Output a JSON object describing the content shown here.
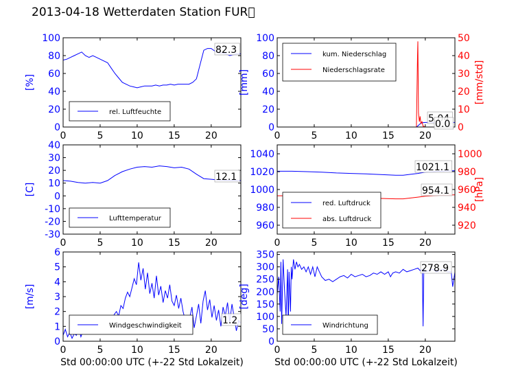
{
  "title": "2013-04-18 Wetterdaten Station FUR\u0000",
  "colors": {
    "blue": "#0000ff",
    "red": "#ff0000",
    "black": "#000000"
  },
  "chart_data": [
    {
      "id": "humidity",
      "type": "line",
      "xlabel": "",
      "ylabel": "[%]",
      "xlim": [
        0,
        24
      ],
      "ylim": [
        0,
        100
      ],
      "xticks": [
        0,
        5,
        10,
        15,
        20
      ],
      "yticks": [
        0,
        20,
        40,
        60,
        80,
        100
      ],
      "annotation": "82.3",
      "legend": [
        {
          "name": "rel. Luftfeuchte",
          "color": "#0000ff"
        }
      ],
      "legend_position": "lower-left",
      "series": [
        {
          "name": "rel. Luftfeuchte",
          "color": "#0000ff",
          "x": [
            0,
            0.5,
            1,
            1.5,
            2,
            2.5,
            3,
            3.5,
            4,
            4.5,
            5,
            5.5,
            6,
            6.5,
            7,
            7.5,
            8,
            8.5,
            9,
            9.5,
            10,
            10.5,
            11,
            11.5,
            12,
            12.5,
            13,
            13.5,
            14,
            14.5,
            15,
            15.5,
            16,
            16.5,
            17,
            17.5,
            18,
            18.5,
            19,
            19.5,
            20,
            20.5,
            21,
            21.5,
            22,
            22.5,
            23,
            23.5,
            24
          ],
          "y": [
            75,
            76,
            78,
            80,
            82,
            84,
            80,
            78,
            80,
            78,
            76,
            74,
            72,
            66,
            60,
            55,
            50,
            48,
            46,
            45,
            44,
            45,
            46,
            46,
            46,
            47,
            46,
            47,
            47,
            48,
            47,
            48,
            48,
            48,
            48,
            50,
            54,
            70,
            86,
            88,
            88,
            85,
            83,
            83,
            82,
            80,
            81,
            82,
            82
          ]
        }
      ]
    },
    {
      "id": "precip",
      "type": "line",
      "xlabel": "",
      "ylabel": "[mm]",
      "ylabel_right": "[mm/std]",
      "xlim": [
        0,
        24
      ],
      "ylim": [
        0,
        100
      ],
      "ylim_right": [
        0,
        50
      ],
      "xticks": [
        0,
        5,
        10,
        15,
        20
      ],
      "yticks": [
        0,
        20,
        40,
        60,
        80,
        100
      ],
      "yticks_right": [
        0,
        10,
        20,
        30,
        40,
        50
      ],
      "annotations": [
        "5.04",
        "0.0"
      ],
      "legend": [
        {
          "name": "kum. Niederschlag",
          "color": "#0000ff"
        },
        {
          "name": "Niederschlagsrate",
          "color": "#ff0000"
        }
      ],
      "legend_position": "upper-left",
      "series": [
        {
          "name": "kum. Niederschlag",
          "color": "#0000ff",
          "axis": "left",
          "x": [
            0,
            18.8,
            19,
            19.2,
            19.4,
            19.6,
            20,
            24
          ],
          "y": [
            0,
            0,
            1.2,
            2.8,
            4.2,
            4.8,
            5.04,
            5.04
          ]
        },
        {
          "name": "Niederschlagsrate",
          "color": "#ff0000",
          "axis": "right",
          "x": [
            0,
            18.8,
            18.95,
            19.0,
            19.08,
            19.2,
            19.3,
            19.4,
            19.55,
            19.7,
            20,
            24
          ],
          "y": [
            0,
            0,
            40,
            48,
            8,
            3,
            6,
            2,
            3,
            0.5,
            0,
            0
          ]
        }
      ]
    },
    {
      "id": "temperature",
      "type": "line",
      "xlabel": "",
      "ylabel": "[C]",
      "xlim": [
        0,
        24
      ],
      "ylim": [
        -30,
        40
      ],
      "xticks": [
        0,
        5,
        10,
        15,
        20
      ],
      "yticks": [
        -30,
        -20,
        -10,
        0,
        10,
        20,
        30,
        40
      ],
      "annotation": "12.1",
      "legend": [
        {
          "name": "Lufttemperatur",
          "color": "#0000ff"
        }
      ],
      "legend_position": "lower-left",
      "series": [
        {
          "name": "Lufttemperatur",
          "color": "#0000ff",
          "x": [
            0,
            1,
            2,
            3,
            4,
            5,
            6,
            7,
            8,
            9,
            10,
            11,
            12,
            13,
            14,
            15,
            16,
            17,
            18,
            19,
            20,
            21,
            22,
            23,
            24
          ],
          "y": [
            12,
            11.5,
            10.5,
            10,
            10.5,
            10,
            12,
            16,
            19,
            21,
            22.5,
            23,
            22.5,
            23.5,
            23,
            22,
            22.5,
            21,
            17,
            13.5,
            13,
            12.5,
            12.3,
            12.1,
            12
          ]
        }
      ]
    },
    {
      "id": "pressure",
      "type": "line",
      "xlabel": "",
      "ylabel": "",
      "ylabel_right": "[hPa]",
      "xlim": [
        0,
        24
      ],
      "ylim": [
        950,
        1050
      ],
      "ylim_right": [
        910,
        1010
      ],
      "xticks": [
        0,
        5,
        10,
        15,
        20
      ],
      "yticks": [
        960,
        980,
        1000,
        1020,
        1040
      ],
      "yticks_right": [
        920,
        940,
        960,
        980,
        1000
      ],
      "annotations": [
        "1021.1",
        "954.1"
      ],
      "legend": [
        {
          "name": "red. Luftdruck",
          "color": "#0000ff"
        },
        {
          "name": "abs. Luftdruck",
          "color": "#ff0000"
        }
      ],
      "legend_position": "lower-left",
      "series": [
        {
          "name": "red. Luftdruck",
          "color": "#0000ff",
          "axis": "left",
          "x": [
            0,
            2,
            4,
            6,
            8,
            10,
            12,
            14,
            16,
            17,
            18,
            19,
            20,
            22,
            24
          ],
          "y": [
            1020.5,
            1020.5,
            1020,
            1019.5,
            1018.5,
            1018,
            1017.5,
            1016.8,
            1016,
            1016,
            1017,
            1018,
            1019.5,
            1020.5,
            1021.1
          ]
        },
        {
          "name": "abs. Luftdruck",
          "color": "#ff0000",
          "axis": "right",
          "x": [
            0,
            2,
            4,
            6,
            8,
            10,
            12,
            14,
            16,
            17,
            18,
            19,
            20,
            22,
            24
          ],
          "y": [
            953,
            953,
            952.5,
            952,
            951.5,
            951,
            950.5,
            950,
            949.5,
            949.5,
            950.5,
            951.5,
            952.5,
            953.5,
            954.1
          ]
        }
      ]
    },
    {
      "id": "windspeed",
      "type": "line",
      "xlabel": "Std 00:00:00 UTC (+-22 Std Lokalzeit)",
      "ylabel": "[m/s]",
      "xlim": [
        0,
        24
      ],
      "ylim": [
        0,
        6
      ],
      "xticks": [
        0,
        5,
        10,
        15,
        20
      ],
      "yticks": [
        0,
        1,
        2,
        3,
        4,
        5,
        6
      ],
      "annotation": "1.2",
      "legend": [
        {
          "name": "Windgeschwindigkeit",
          "color": "#0000ff"
        }
      ],
      "legend_position": "lower-left",
      "series": [
        {
          "name": "Windgeschwindigkeit",
          "color": "#0000ff",
          "x": [
            0,
            0.3,
            0.6,
            0.9,
            1.2,
            1.5,
            1.8,
            2.1,
            2.4,
            2.7,
            3.0,
            3.3,
            3.6,
            3.9,
            4.2,
            4.5,
            4.8,
            5.1,
            5.4,
            5.7,
            6.0,
            6.3,
            6.6,
            6.9,
            7.2,
            7.5,
            7.8,
            8.1,
            8.4,
            8.7,
            9.0,
            9.3,
            9.6,
            9.9,
            10.2,
            10.5,
            10.8,
            11.1,
            11.4,
            11.7,
            12.0,
            12.3,
            12.6,
            12.9,
            13.2,
            13.5,
            13.8,
            14.1,
            14.4,
            14.7,
            15.0,
            15.3,
            15.6,
            15.9,
            16.2,
            16.5,
            16.8,
            17.1,
            17.4,
            17.7,
            18.0,
            18.3,
            18.6,
            18.9,
            19.2,
            19.5,
            19.8,
            20.1,
            20.4,
            20.7,
            21.0,
            21.3,
            21.6,
            21.9,
            22.2,
            22.5,
            22.8,
            23.1,
            23.4,
            23.7,
            24.0
          ],
          "y": [
            0.4,
            0.8,
            0.3,
            0.6,
            0.2,
            0.5,
            0.4,
            0.9,
            0.3,
            0.7,
            0.5,
            1.0,
            0.6,
            0.9,
            1.1,
            0.8,
            1.3,
            1.0,
            1.2,
            1.4,
            1.1,
            1.6,
            1.3,
            1.8,
            2.0,
            1.7,
            2.4,
            2.2,
            2.9,
            3.3,
            3.0,
            3.6,
            4.2,
            3.8,
            5.3,
            4.1,
            4.9,
            3.5,
            4.6,
            3.2,
            3.9,
            2.9,
            4.4,
            3.1,
            3.7,
            2.6,
            3.4,
            2.9,
            3.8,
            2.7,
            2.4,
            3.1,
            2.2,
            2.9,
            2.0,
            1.4,
            0.6,
            1.6,
            2.3,
            0.9,
            1.7,
            2.5,
            1.2,
            2.7,
            3.4,
            2.1,
            2.8,
            1.6,
            2.4,
            1.4,
            2.1,
            1.0,
            2.3,
            1.7,
            2.6,
            1.3,
            2.5,
            1.6,
            0.7,
            1.4,
            1.2
          ]
        }
      ]
    },
    {
      "id": "winddir",
      "type": "line",
      "xlabel": "Std 00:00:00 UTC (+-22 Std Lokalzeit)",
      "ylabel": "[deg]",
      "xlim": [
        0,
        24
      ],
      "ylim": [
        0,
        360
      ],
      "xticks": [
        0,
        5,
        10,
        15,
        20
      ],
      "yticks": [
        0,
        50,
        100,
        150,
        200,
        250,
        300,
        350
      ],
      "annotation": "278.9",
      "legend": [
        {
          "name": "Windrichtung",
          "color": "#0000ff"
        }
      ],
      "legend_position": "lower-left",
      "series": [
        {
          "name": "Windrichtung",
          "color": "#0000ff",
          "x": [
            0,
            0.2,
            0.4,
            0.5,
            0.6,
            0.8,
            1.0,
            1.2,
            1.4,
            1.5,
            1.6,
            1.8,
            1.9,
            2.0,
            2.2,
            2.4,
            2.6,
            2.8,
            3.0,
            3.3,
            3.6,
            3.9,
            4.2,
            4.5,
            4.8,
            5.1,
            5.4,
            5.7,
            6.0,
            6.5,
            7.0,
            7.5,
            8.0,
            8.5,
            9.0,
            9.5,
            10.0,
            10.5,
            11.0,
            11.5,
            12.0,
            12.5,
            13.0,
            13.5,
            14.0,
            14.5,
            15.0,
            15.3,
            15.6,
            16.0,
            16.5,
            17.0,
            17.5,
            18.0,
            18.5,
            19.0,
            19.3,
            19.6,
            19.7,
            19.8,
            20.0,
            20.5,
            21.0,
            21.5,
            22.0,
            22.5,
            23.0,
            23.5,
            23.7,
            24.0
          ],
          "y": [
            190,
            260,
            120,
            320,
            70,
            330,
            200,
            100,
            290,
            40,
            280,
            120,
            300,
            250,
            330,
            290,
            320,
            300,
            310,
            290,
            300,
            280,
            300,
            270,
            300,
            260,
            300,
            280,
            260,
            245,
            250,
            240,
            250,
            260,
            265,
            255,
            270,
            260,
            265,
            270,
            260,
            265,
            275,
            270,
            280,
            270,
            280,
            260,
            275,
            280,
            275,
            290,
            280,
            285,
            290,
            295,
            285,
            290,
            60,
            290,
            280,
            285,
            290,
            280,
            285,
            290,
            280,
            280,
            220,
            279
          ]
        }
      ]
    }
  ]
}
